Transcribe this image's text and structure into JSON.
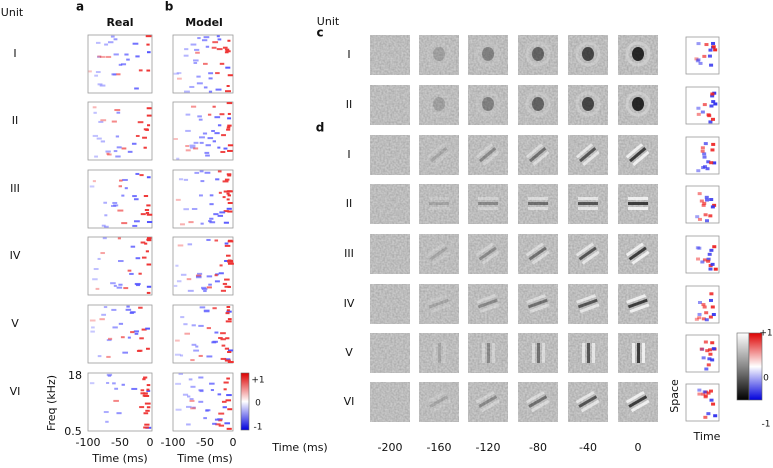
{
  "header": {
    "unit_label": "Unit"
  },
  "panel_a": {
    "label": "a",
    "title": "Real"
  },
  "panel_b": {
    "label": "b",
    "title": "Model"
  },
  "units_ab": [
    "I",
    "II",
    "III",
    "IV",
    "V",
    "VI"
  ],
  "freq_axis": {
    "label": "Freq (kHz)",
    "ticks": [
      "18",
      "0.5"
    ]
  },
  "time_axis": {
    "label": "Time (ms)",
    "ticks": [
      "-100",
      "-50",
      "0"
    ]
  },
  "colorbar_1": {
    "ticks": [
      "+1",
      "0",
      "-1"
    ]
  },
  "panel_c": {
    "label": "c",
    "unit_label": "Unit",
    "units": [
      "I",
      "II"
    ]
  },
  "panel_d": {
    "label": "d",
    "units": [
      "I",
      "II",
      "III",
      "IV",
      "V",
      "VI"
    ]
  },
  "lag_axis": {
    "label": "Time (ms)",
    "ticks": [
      "-200",
      "-160",
      "-120",
      "-80",
      "-40",
      "0"
    ]
  },
  "colorbar_2": {
    "ticks": [
      "+1",
      "0",
      "-1"
    ]
  },
  "inset_axes": {
    "x_label": "Time",
    "y_label": "Space"
  }
}
